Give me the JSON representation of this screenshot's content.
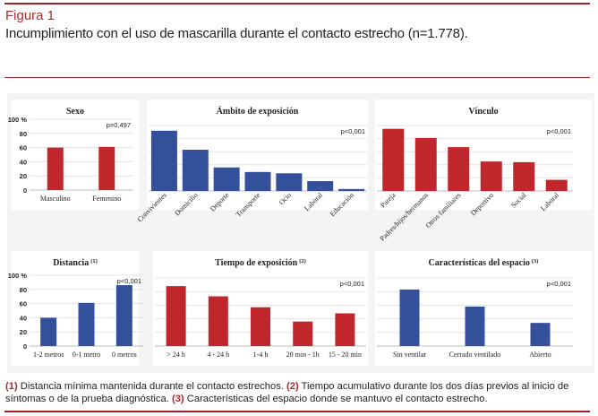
{
  "figure": {
    "label": "Figura 1",
    "title": "Incumplimiento con el uso de mascarilla durante el contacto estrecho (n=1.778)."
  },
  "colors": {
    "red": "#c0262c",
    "blue": "#34509a",
    "accent": "#a31f26"
  },
  "chart_data": [
    {
      "type": "bar",
      "title": "Sexo",
      "ylabel": "%",
      "pvalue": "p=0,497",
      "color": "red",
      "categories": [
        "Masculino",
        "Femenino"
      ],
      "values": [
        60,
        61
      ],
      "ylim": [
        0,
        100
      ],
      "yticks": [
        0,
        20,
        40,
        60,
        80,
        100
      ],
      "grid": true,
      "rotate": false
    },
    {
      "type": "bar",
      "title": "Ámbito de exposición",
      "pvalue": "p<0,001",
      "color": "blue",
      "categories": [
        "Convivientes",
        "Domicilio",
        "Deporte",
        "Transporte",
        "Ocio",
        "Laboral",
        "Educación"
      ],
      "values": [
        92,
        63,
        36,
        29,
        27,
        15,
        3
      ],
      "ylim": [
        0,
        100
      ],
      "grid": true,
      "rotate": true
    },
    {
      "type": "bar",
      "title": "Vínculo",
      "pvalue": "p<0,001",
      "color": "red",
      "categories": [
        "Pareja",
        "Padres/hijos/hermanos",
        "Otros familiares",
        "Deportivo",
        "Social",
        "Laboral"
      ],
      "values": [
        95,
        81,
        67,
        45,
        44,
        17
      ],
      "ylim": [
        0,
        100
      ],
      "grid": true,
      "rotate": true
    },
    {
      "type": "bar",
      "title": "Distancia",
      "note": "(1)",
      "ylabel": "%",
      "pvalue": "p<0,001",
      "color": "blue",
      "categories": [
        "1-2 metros",
        "0-1 metro",
        "0 metros"
      ],
      "values": [
        40,
        61,
        86
      ],
      "ylim": [
        0,
        100
      ],
      "yticks": [
        0,
        20,
        40,
        60,
        80,
        100
      ],
      "grid": true,
      "rotate": false
    },
    {
      "type": "bar",
      "title": "Tiempo de exposición",
      "note": "(2)",
      "pvalue": "p<0,001",
      "color": "red",
      "categories": [
        "> 24 h",
        "4 - 24 h",
        "1-4 h",
        "20 min - 1h",
        "15 - 20 min"
      ],
      "values": [
        88,
        73,
        57,
        36,
        48
      ],
      "ylim": [
        0,
        100
      ],
      "grid": true,
      "rotate": false
    },
    {
      "type": "bar",
      "title": "Características del espacio",
      "note": "(3)",
      "pvalue": "p<0,001",
      "color": "blue",
      "categories": [
        "Sin ventilar",
        "Cerrado ventilado",
        "Abierto"
      ],
      "values": [
        83,
        58,
        34
      ],
      "ylim": [
        0,
        100
      ],
      "grid": true,
      "rotate": false
    }
  ],
  "footnote": {
    "n1": "(1)",
    "t1": "Distancia mínima mantenida durante el contacto estrechos.",
    "n2": "(2)",
    "t2": "Tiempo acumulativo durante los dos días previos al inicio de síntomas o de la prueba diagnóstica.",
    "n3": "(3)",
    "t3": "Características del espacio donde se mantuvo el contacto estrecho."
  }
}
